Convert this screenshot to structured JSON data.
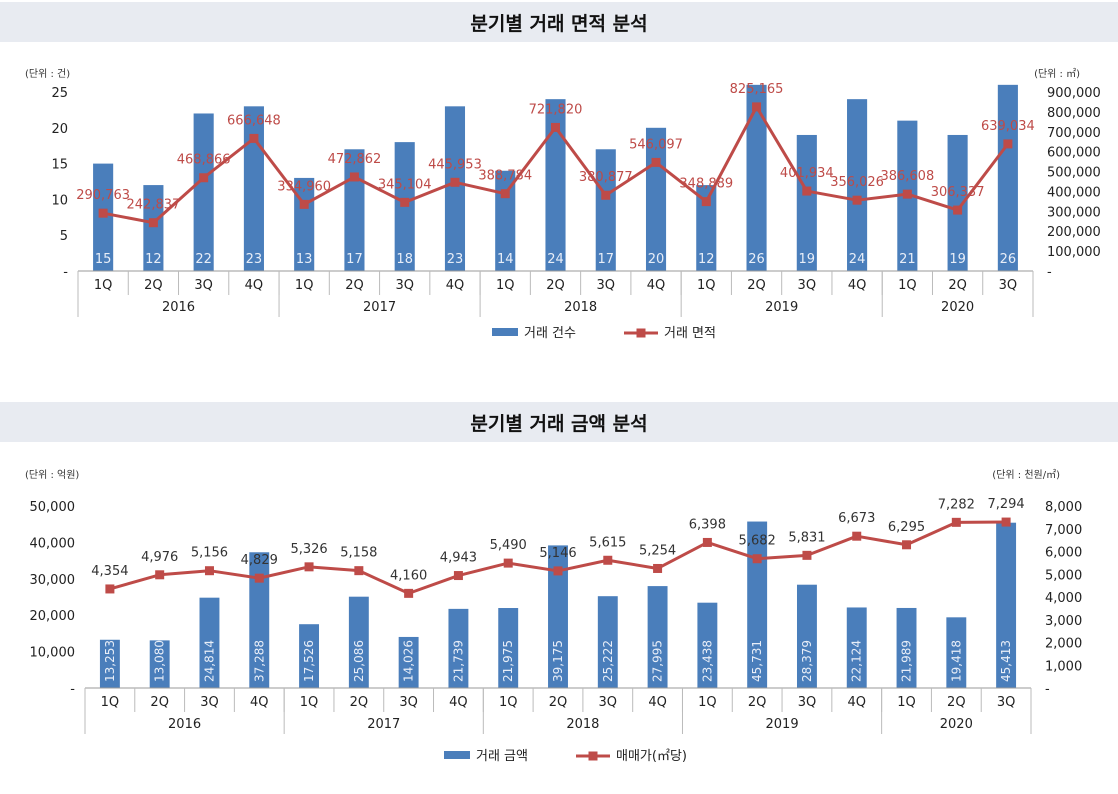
{
  "chart_data": [
    {
      "type": "bar+line",
      "title": "분기별 거래 면적 분석",
      "left_unit": "(단위 : 건)",
      "right_unit": "(단위 : ㎡)",
      "categories": [
        "1Q",
        "2Q",
        "3Q",
        "4Q",
        "1Q",
        "2Q",
        "3Q",
        "4Q",
        "1Q",
        "2Q",
        "3Q",
        "4Q",
        "1Q",
        "2Q",
        "3Q",
        "4Q",
        "1Q",
        "2Q",
        "3Q"
      ],
      "years": [
        {
          "label": "2016",
          "count": 4
        },
        {
          "label": "2017",
          "count": 4
        },
        {
          "label": "2018",
          "count": 4
        },
        {
          "label": "2019",
          "count": 4
        },
        {
          "label": "2020",
          "count": 3
        }
      ],
      "left_ticks": [
        "-",
        "5",
        "10",
        "15",
        "20",
        "25"
      ],
      "left_range": [
        0,
        25
      ],
      "right_ticks": [
        "-",
        "100,000",
        "200,000",
        "300,000",
        "400,000",
        "500,000",
        "600,000",
        "700,000",
        "800,000",
        "900,000"
      ],
      "right_range": [
        0,
        900000
      ],
      "bars": {
        "name": "거래 건수",
        "values": [
          15,
          12,
          22,
          23,
          13,
          17,
          18,
          23,
          14,
          24,
          17,
          20,
          12,
          26,
          19,
          24,
          21,
          19,
          26
        ],
        "labels": [
          "15",
          "12",
          "22",
          "23",
          "13",
          "17",
          "18",
          "23",
          "14",
          "24",
          "17",
          "20",
          "12",
          "26",
          "19",
          "24",
          "21",
          "19",
          "26"
        ]
      },
      "line": {
        "name": "거래 면적",
        "values": [
          290763,
          242837,
          468866,
          666648,
          334960,
          472862,
          345104,
          445953,
          388784,
          721820,
          380877,
          546097,
          348889,
          825165,
          401934,
          356026,
          386608,
          306337,
          639034
        ],
        "labels": [
          "290,763",
          "242,837",
          "468,866",
          "666,648",
          "334,960",
          "472,862",
          "345,104",
          "445,953",
          "388,784",
          "721,820",
          "380,877",
          "546,097",
          "348,889",
          "825,165",
          "401,934",
          "356,026",
          "386,608",
          "306,337",
          "639,034"
        ]
      },
      "colors": {
        "bar": "#4a7ebb",
        "line": "#be4b48"
      }
    },
    {
      "type": "bar+line",
      "title": "분기별 거래 금액 분석",
      "left_unit": "(단위 : 억원)",
      "right_unit": "(단위 : 천원/㎡)",
      "categories": [
        "1Q",
        "2Q",
        "3Q",
        "4Q",
        "1Q",
        "2Q",
        "3Q",
        "4Q",
        "1Q",
        "2Q",
        "3Q",
        "4Q",
        "1Q",
        "2Q",
        "3Q",
        "4Q",
        "1Q",
        "2Q",
        "3Q"
      ],
      "years": [
        {
          "label": "2016",
          "count": 4
        },
        {
          "label": "2017",
          "count": 4
        },
        {
          "label": "2018",
          "count": 4
        },
        {
          "label": "2019",
          "count": 4
        },
        {
          "label": "2020",
          "count": 3
        }
      ],
      "left_ticks": [
        "-",
        "10,000",
        "20,000",
        "30,000",
        "40,000",
        "50,000"
      ],
      "left_range": [
        0,
        50000
      ],
      "right_ticks": [
        "-",
        "1,000",
        "2,000",
        "3,000",
        "4,000",
        "5,000",
        "6,000",
        "7,000",
        "8,000"
      ],
      "right_range": [
        0,
        8000
      ],
      "bars": {
        "name": "거래 금액",
        "values": [
          13253,
          13080,
          24814,
          37288,
          17526,
          25086,
          14026,
          21739,
          21975,
          39175,
          25222,
          27995,
          23438,
          45731,
          28379,
          22124,
          21989,
          19418,
          45413
        ],
        "labels": [
          "13,253",
          "13,080",
          "24,814",
          "37,288",
          "17,526",
          "25,086",
          "14,026",
          "21,739",
          "21,975",
          "39,175",
          "25,222",
          "27,995",
          "23,438",
          "45,731",
          "28,379",
          "22,124",
          "21,989",
          "19,418",
          "45,413"
        ]
      },
      "line": {
        "name": "매매가(㎡당)",
        "values": [
          4354,
          4976,
          5156,
          4829,
          5326,
          5158,
          4160,
          4943,
          5490,
          5146,
          5615,
          5254,
          6398,
          5682,
          5831,
          6673,
          6295,
          7282,
          7294
        ],
        "labels": [
          "4,354",
          "4,976",
          "5,156",
          "4,829",
          "5,326",
          "5,158",
          "4,160",
          "4,943",
          "5,490",
          "5,146",
          "5,615",
          "5,254",
          "6,398",
          "5,682",
          "5,831",
          "6,673",
          "6,295",
          "7,282",
          "7,294"
        ]
      },
      "colors": {
        "bar": "#4a7ebb",
        "line": "#be4b48"
      }
    }
  ]
}
